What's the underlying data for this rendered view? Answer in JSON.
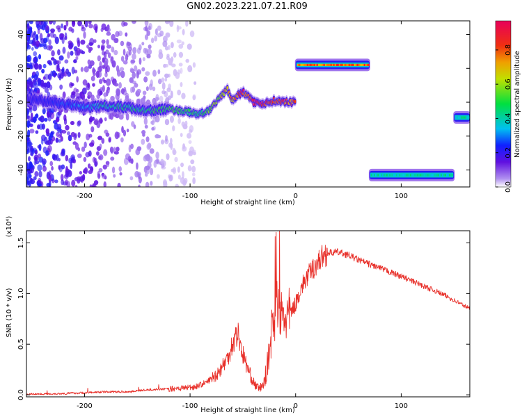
{
  "title": "GN02.2023.221.07.21.R09",
  "chart_data": [
    {
      "type": "heatmap",
      "xlabel": "Height of straight line (km)",
      "ylabel": "Frequency (Hz)",
      "xlim": [
        -255,
        165
      ],
      "ylim": [
        -50,
        48
      ],
      "xticks": [
        -200,
        -100,
        0,
        100
      ],
      "yticks": [
        -40,
        -20,
        0,
        20,
        40
      ],
      "colorbar": {
        "label": "Normalized spectral amplitude",
        "range": [
          0,
          0.97
        ],
        "ticks": [
          "0.0",
          "0.2",
          "0.4",
          "0.6",
          "0.8"
        ],
        "tick_values": [
          0,
          0.2,
          0.4,
          0.6,
          0.8
        ]
      },
      "ridge": {
        "x": [
          -255,
          -230,
          -200,
          -180,
          -160,
          -140,
          -120,
          -100,
          -90,
          -80,
          -70,
          -65,
          -60,
          -55,
          -50,
          -45,
          -40,
          -35,
          -30,
          -20,
          -10,
          0
        ],
        "y": [
          2,
          0,
          -3,
          -2,
          -3,
          -5,
          -4,
          -6,
          -7,
          -4,
          4,
          8,
          1,
          4,
          6,
          4,
          0,
          0,
          -1,
          1,
          0,
          0
        ],
        "level": [
          0.2,
          0.25,
          0.35,
          0.45,
          0.45,
          0.5,
          0.55,
          0.5,
          0.5,
          0.6,
          0.7,
          0.75,
          0.8,
          0.85,
          0.9,
          0.85,
          0.9,
          0.95,
          0.95,
          0.85,
          0.9,
          0.9
        ]
      },
      "bands": [
        {
          "x_start": 0,
          "x_end": 70,
          "y": 22,
          "level": 0.9
        },
        {
          "x_start": 70,
          "x_end": 150,
          "y": -43,
          "level": 0.45
        },
        {
          "x_start": 150,
          "x_end": 165,
          "y": -9,
          "level": 0.45
        }
      ]
    },
    {
      "type": "line",
      "xlabel": "Height of straight line (km)",
      "ylabel": "SNR (10 * v/v)",
      "yunit": "(x10⁴)",
      "xlim": [
        -255,
        165
      ],
      "ylim": [
        -0.02,
        1.62
      ],
      "xticks": [
        -200,
        -100,
        0,
        100
      ],
      "yticks": [
        "0.0",
        "0.5",
        "1.0",
        "1.5"
      ],
      "ytick_values": [
        0,
        0.5,
        1.0,
        1.5
      ],
      "color": "#e8302a",
      "x": [
        -255,
        -230,
        -200,
        -180,
        -160,
        -140,
        -120,
        -105,
        -95,
        -85,
        -75,
        -65,
        -60,
        -55,
        -50,
        -45,
        -40,
        -35,
        -30,
        -25,
        -22,
        -18,
        -15,
        -10,
        -5,
        0,
        5,
        10,
        15,
        20,
        25,
        30,
        40,
        50,
        60,
        80,
        100,
        120,
        140,
        165
      ],
      "values": [
        0.005,
        0.01,
        0.02,
        0.03,
        0.03,
        0.05,
        0.06,
        0.07,
        0.08,
        0.12,
        0.2,
        0.35,
        0.5,
        0.62,
        0.4,
        0.25,
        0.12,
        0.06,
        0.1,
        0.4,
        0.7,
        0.85,
        0.8,
        0.75,
        0.8,
        0.9,
        1.05,
        1.15,
        1.22,
        1.3,
        1.36,
        1.4,
        1.41,
        1.38,
        1.33,
        1.25,
        1.17,
        1.08,
        0.99,
        0.85
      ]
    }
  ]
}
